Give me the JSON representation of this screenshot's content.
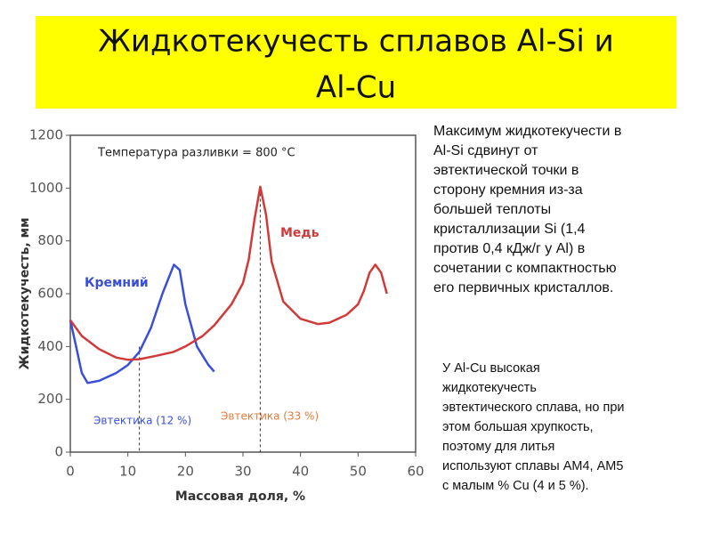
{
  "header": {
    "title_lines": [
      "Жидкотекучесть сплавов Al-Si и",
      "Al-Cu"
    ]
  },
  "chart_data": {
    "type": "line",
    "xlabel": "Массовая доля, %",
    "ylabel": "Жидкотекучесть, мм",
    "xlim": [
      0,
      60
    ],
    "xticks": [
      0,
      10,
      20,
      30,
      40,
      50,
      60
    ],
    "ylim": [
      0,
      1200
    ],
    "yticks": [
      0,
      200,
      400,
      600,
      800,
      1000,
      1200
    ],
    "series": [
      {
        "name": "Кремний",
        "color": "#3a4fd8",
        "x": [
          0,
          1,
          2,
          3,
          5,
          8,
          10,
          12,
          14,
          16,
          18,
          19,
          20,
          22,
          24,
          25
        ],
        "values": [
          500,
          400,
          300,
          262,
          270,
          300,
          330,
          380,
          470,
          600,
          710,
          690,
          560,
          400,
          330,
          305
        ]
      },
      {
        "name": "Медь",
        "color": "#d23a3a",
        "x": [
          0,
          2,
          5,
          8,
          10,
          12,
          15,
          18,
          20,
          23,
          25,
          28,
          30,
          31,
          32,
          33,
          34,
          35,
          37,
          40,
          43,
          45,
          48,
          50,
          51,
          52,
          53,
          54,
          55
        ],
        "values": [
          500,
          440,
          390,
          358,
          350,
          352,
          365,
          380,
          400,
          440,
          480,
          560,
          640,
          730,
          880,
          1005,
          900,
          720,
          570,
          505,
          485,
          490,
          520,
          560,
          610,
          680,
          710,
          680,
          600
        ]
      }
    ],
    "vlines": [
      12,
      33
    ],
    "annotations": [
      {
        "text": "Температура разливки = 800 °C",
        "color": "#222222"
      },
      {
        "text": "Эвтектика (12 %)",
        "color": "#3a4fd8"
      },
      {
        "text": "Эвтектика (33 %)",
        "color": "#e07a3a"
      }
    ]
  },
  "paragraphs": [
    [
      "Максимум жидкотекучести в",
      "Al-Si сдвинут от",
      "эвтектической точки в",
      "сторону кремния из-за",
      "большей теплоты",
      "кристаллизации Si (1,4",
      "против 0,4 кДж/г у Al) в",
      "сочетании с компактностью",
      "его первичных кристаллов."
    ],
    [
      "У Al-Cu высокая",
      "жидкотекучесть",
      "эвтектического сплава, но при",
      "этом большая хрупкость,",
      "поэтому для литья",
      "используют сплавы АМ4, АМ5",
      "с малым % Cu (4 и 5 %)."
    ]
  ]
}
